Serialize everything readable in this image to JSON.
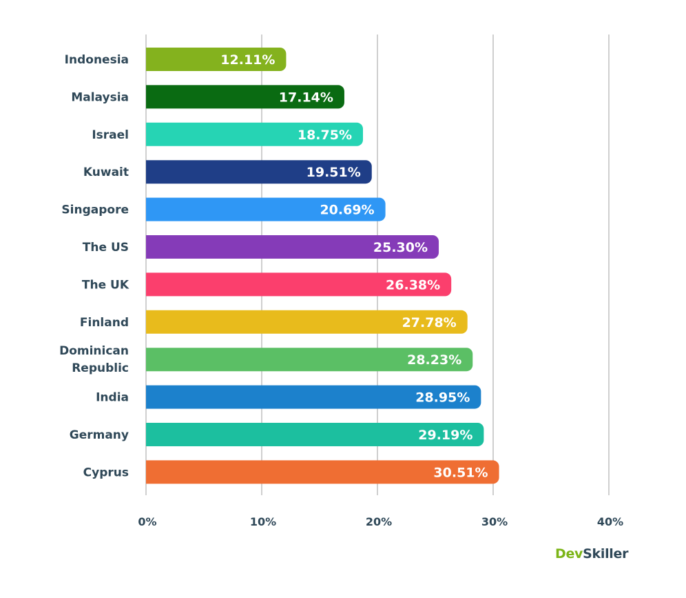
{
  "chart_data": {
    "type": "bar",
    "orientation": "horizontal",
    "categories": [
      "Indonesia",
      "Malaysia",
      "Israel",
      "Kuwait",
      "Singapore",
      "The US",
      "The UK",
      "Finland",
      "Dominican Republic",
      "India",
      "Germany",
      "Cyprus"
    ],
    "values": [
      12.11,
      17.14,
      18.75,
      19.51,
      20.69,
      25.3,
      26.38,
      27.78,
      28.23,
      28.95,
      29.19,
      30.51
    ],
    "value_labels": [
      "12.11%",
      "17.14%",
      "18.75%",
      "19.51%",
      "20.69%",
      "25.30%",
      "26.38%",
      "27.78%",
      "28.23%",
      "28.95%",
      "29.19%",
      "30.51%"
    ],
    "colors": [
      "#84b21e",
      "#0a6b12",
      "#26d4b4",
      "#1f3e87",
      "#2f97f5",
      "#853bb8",
      "#fb3f6d",
      "#e8bb1c",
      "#5bbf65",
      "#1c81cc",
      "#1cbf9f",
      "#ef6e33"
    ],
    "xlim": [
      0,
      40
    ],
    "x_ticks": [
      0,
      10,
      20,
      30,
      40
    ],
    "x_tick_labels": [
      "0%",
      "10%",
      "20%",
      "30%",
      "40%"
    ],
    "grid": true,
    "legend": "none"
  },
  "brand": {
    "dev": "Dev",
    "skiller": "Skiller",
    "dev_color": "#7cb518",
    "skiller_color": "#2f4858"
  }
}
